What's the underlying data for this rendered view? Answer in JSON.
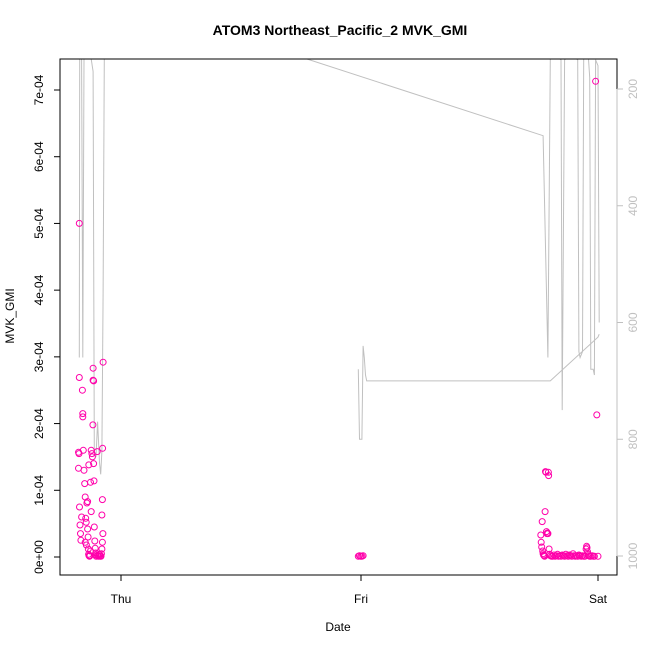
{
  "chart_data": {
    "type": "scatter",
    "title": "ATOM3 Northeast_Pacific_2 MVK_GMI",
    "xlabel": "Date",
    "ylabel": "MVK_GMI",
    "x_ticks": [
      "Thu",
      "Fri",
      "Sat"
    ],
    "y_ticks": [
      "0e+00",
      "1e-04",
      "2e-04",
      "3e-04",
      "4e-04",
      "5e-04",
      "6e-04",
      "7e-04"
    ],
    "ylim": [
      0,
      0.00074
    ],
    "y2_ticks": [
      "200",
      "400",
      "600",
      "800",
      "1000"
    ],
    "y2lim_inverted": [
      1000,
      140
    ],
    "xlim_days": [
      -0.2,
      2.05
    ],
    "grid": false,
    "point_color": "#ff00aa",
    "line_color": "#c0c0c0",
    "series": [
      {
        "kind": "scatter",
        "points": [
          [
            -0.175,
            0.0005
          ],
          [
            -0.175,
            0.000269
          ],
          [
            -0.178,
            0.000157
          ],
          [
            -0.176,
            0.000155
          ],
          [
            -0.178,
            0.000133
          ],
          [
            -0.174,
            7.5e-05
          ],
          [
            -0.172,
            4.8e-05
          ],
          [
            -0.17,
            3.5e-05
          ],
          [
            -0.168,
            2.5e-05
          ],
          [
            -0.165,
            6e-05
          ],
          [
            -0.162,
            0.00025
          ],
          [
            -0.16,
            0.000215
          ],
          [
            -0.16,
            0.00021
          ],
          [
            -0.158,
            0.00016
          ],
          [
            -0.155,
            0.00013
          ],
          [
            -0.152,
            0.00011
          ],
          [
            -0.15,
            9e-05
          ],
          [
            -0.148,
            5.8e-05
          ],
          [
            -0.146,
            5.2e-05
          ],
          [
            -0.15,
            2.2e-05
          ],
          [
            -0.145,
            1.8e-05
          ],
          [
            -0.143,
            8.1e-05
          ],
          [
            -0.14,
            8.3e-05
          ],
          [
            -0.14,
            4.2e-05
          ],
          [
            -0.138,
            3e-05
          ],
          [
            -0.137,
            1.2e-05
          ],
          [
            -0.136,
            4e-06
          ],
          [
            -0.134,
            2e-06
          ],
          [
            -0.132,
            1e-06
          ],
          [
            -0.13,
            2e-06
          ],
          [
            -0.128,
            9e-06
          ],
          [
            -0.135,
            0.000138
          ],
          [
            -0.128,
            0.000112
          ],
          [
            -0.125,
            6.8e-05
          ],
          [
            -0.125,
            0.00016
          ],
          [
            -0.122,
            0.000155
          ],
          [
            -0.12,
            0.00015
          ],
          [
            -0.118,
            0.000198
          ],
          [
            -0.117,
            0.000283
          ],
          [
            -0.117,
            0.000265
          ],
          [
            -0.115,
            0.000264
          ],
          [
            -0.115,
            0.00014
          ],
          [
            -0.113,
            0.000114
          ],
          [
            -0.112,
            4.5e-05
          ],
          [
            -0.11,
            2.4e-05
          ],
          [
            -0.108,
            1.3e-05
          ],
          [
            -0.106,
            6e-06
          ],
          [
            -0.105,
            3e-06
          ],
          [
            -0.104,
            1e-06
          ],
          [
            -0.1,
            0.000158
          ],
          [
            -0.098,
            2e-06
          ],
          [
            -0.095,
            1e-06
          ],
          [
            -0.092,
            2e-06
          ],
          [
            -0.09,
            4e-06
          ],
          [
            -0.088,
            1e-06
          ],
          [
            -0.086,
            2e-06
          ],
          [
            -0.084,
            1e-06
          ],
          [
            -0.082,
            5e-06
          ],
          [
            -0.08,
            1.2e-05
          ],
          [
            -0.078,
            2.2e-05
          ],
          [
            -0.076,
            3.5e-05
          ],
          [
            -0.08,
            6.3e-05
          ],
          [
            -0.078,
            8.6e-05
          ],
          [
            -0.077,
            0.000163
          ],
          [
            -0.075,
            0.000292
          ],
          [
            0.995,
            1e-06
          ],
          [
            1.0,
            2e-06
          ],
          [
            1.005,
            1e-06
          ],
          [
            1.01,
            1e-06
          ],
          [
            1.015,
            2e-06
          ],
          [
            1.76,
            3.3e-05
          ],
          [
            1.762,
            2.2e-05
          ],
          [
            1.764,
            1.5e-05
          ],
          [
            1.766,
            5.3e-05
          ],
          [
            1.768,
            9e-06
          ],
          [
            1.77,
            5e-06
          ],
          [
            1.772,
            3e-06
          ],
          [
            1.774,
            2e-06
          ],
          [
            1.776,
            1e-06
          ],
          [
            1.778,
            6.8e-05
          ],
          [
            1.78,
            0.000128
          ],
          [
            1.782,
            0.000127
          ],
          [
            1.784,
            3.8e-05
          ],
          [
            1.786,
            3.5e-05
          ],
          [
            1.788,
            3.6e-05
          ],
          [
            1.79,
            3.5e-05
          ],
          [
            1.792,
            0.000127
          ],
          [
            1.793,
            0.000122
          ],
          [
            1.795,
            1.2e-05
          ],
          [
            1.797,
            4e-06
          ],
          [
            1.8,
            2e-06
          ],
          [
            1.805,
            1e-06
          ],
          [
            1.81,
            1e-06
          ],
          [
            1.815,
            3e-06
          ],
          [
            1.82,
            1e-06
          ],
          [
            1.825,
            2e-06
          ],
          [
            1.83,
            4e-06
          ],
          [
            1.835,
            1e-06
          ],
          [
            1.84,
            2e-06
          ],
          [
            1.845,
            1e-06
          ],
          [
            1.85,
            3e-06
          ],
          [
            1.855,
            2e-06
          ],
          [
            1.86,
            1e-06
          ],
          [
            1.865,
            4e-06
          ],
          [
            1.87,
            2e-06
          ],
          [
            1.875,
            1e-06
          ],
          [
            1.88,
            3e-06
          ],
          [
            1.885,
            2e-06
          ],
          [
            1.89,
            1e-06
          ],
          [
            1.895,
            5e-06
          ],
          [
            1.9,
            2e-06
          ],
          [
            1.905,
            1e-06
          ],
          [
            1.91,
            2e-06
          ],
          [
            1.915,
            1e-06
          ],
          [
            1.92,
            3e-06
          ],
          [
            1.925,
            2e-06
          ],
          [
            1.93,
            1e-06
          ],
          [
            1.935,
            2e-06
          ],
          [
            1.94,
            1e-06
          ],
          [
            1.945,
            1e-06
          ],
          [
            1.95,
            1.2e-05
          ],
          [
            1.952,
            1.6e-05
          ],
          [
            1.954,
            1.4e-05
          ],
          [
            1.956,
            8e-06
          ],
          [
            1.958,
            4e-06
          ],
          [
            1.96,
            2e-06
          ],
          [
            1.965,
            1e-06
          ],
          [
            1.97,
            1e-06
          ],
          [
            1.975,
            2e-06
          ],
          [
            1.98,
            1e-06
          ],
          [
            1.985,
            1e-06
          ],
          [
            1.99,
            0.000713
          ],
          [
            1.995,
            0.000213
          ],
          [
            2.0,
            1e-06
          ]
        ]
      },
      {
        "kind": "line",
        "axis": "right",
        "points": [
          [
            -0.175,
            660
          ],
          [
            -0.173,
            140
          ],
          [
            -0.165,
            140
          ],
          [
            -0.16,
            660
          ],
          [
            -0.155,
            140
          ],
          [
            -0.15,
            140
          ],
          [
            -0.145,
            140
          ],
          [
            -0.14,
            140
          ],
          [
            -0.135,
            140
          ],
          [
            -0.13,
            140
          ],
          [
            -0.125,
            140
          ],
          [
            -0.117,
            170
          ],
          [
            -0.112,
            820
          ],
          [
            -0.105,
            830
          ],
          [
            -0.098,
            770
          ],
          [
            -0.09,
            840
          ],
          [
            -0.085,
            860
          ],
          [
            -0.08,
            820
          ],
          [
            -0.075,
            550
          ],
          [
            -0.07,
            140
          ],
          [
            0.78,
            140
          ],
          [
            1.77,
            280
          ],
          [
            1.79,
            660
          ],
          [
            1.8,
            140
          ],
          [
            1.81,
            140
          ],
          [
            1.82,
            140
          ],
          [
            1.83,
            140
          ],
          [
            1.84,
            140
          ],
          [
            1.845,
            150
          ],
          [
            1.85,
            750
          ],
          [
            1.86,
            150
          ],
          [
            1.865,
            140
          ],
          [
            1.87,
            140
          ],
          [
            1.88,
            140
          ],
          [
            1.89,
            140
          ],
          [
            1.9,
            140
          ],
          [
            1.91,
            140
          ],
          [
            1.915,
            150
          ],
          [
            1.92,
            650
          ],
          [
            1.925,
            660
          ],
          [
            1.935,
            650
          ],
          [
            1.94,
            140
          ],
          [
            1.945,
            140
          ],
          [
            1.95,
            140
          ],
          [
            1.96,
            140
          ],
          [
            1.965,
            180
          ],
          [
            1.97,
            680
          ],
          [
            1.975,
            680
          ],
          [
            1.98,
            680
          ],
          [
            1.985,
            690
          ],
          [
            1.99,
            150
          ],
          [
            2.0,
            160
          ],
          [
            2.005,
            600
          ]
        ]
      },
      {
        "kind": "line",
        "axis": "right",
        "points": [
          [
            0.995,
            680
          ],
          [
            1.0,
            800
          ],
          [
            1.01,
            800
          ],
          [
            1.015,
            640
          ],
          [
            1.02,
            660
          ],
          [
            1.025,
            690
          ],
          [
            1.03,
            700
          ],
          [
            1.8,
            700
          ],
          [
            2.0,
            625
          ],
          [
            2.005,
            620
          ]
        ]
      }
    ]
  }
}
